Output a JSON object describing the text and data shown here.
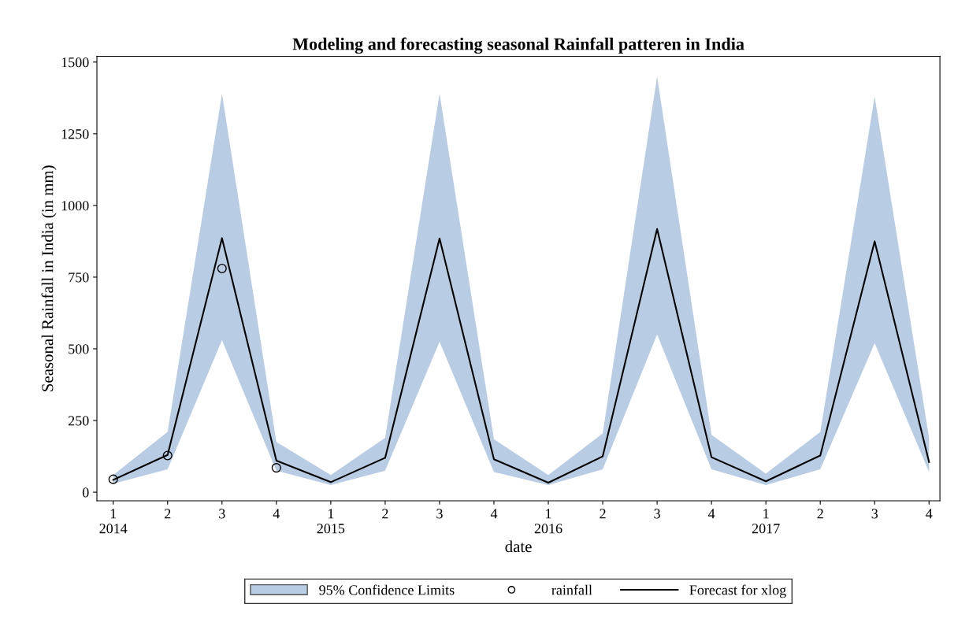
{
  "chart_data": {
    "type": "line",
    "title": "Modeling and forecasting seasonal Rainfall patteren in India",
    "xlabel": "date",
    "ylabel": "Seasonal Rainfall in India (in mm)",
    "categories": [
      "1\n2014",
      "2",
      "3",
      "4",
      "1\n2015",
      "2",
      "3",
      "4",
      "1\n2016",
      "2",
      "3",
      "4",
      "1\n2017",
      "2",
      "3",
      "4"
    ],
    "annotations": [
      "95% Confidence Limits"
    ],
    "ylim": [
      -30,
      1520
    ],
    "yticks": [
      0,
      250,
      500,
      750,
      1000,
      1250,
      1500
    ],
    "grid": false,
    "legend": "bottom",
    "series": [
      {
        "name": "rainfall",
        "type": "scatter",
        "marker": "circle",
        "color": "#000000",
        "values": [
          45,
          128,
          780,
          85,
          null,
          null,
          null,
          null,
          null,
          null,
          null,
          null,
          null,
          null,
          null,
          null
        ]
      },
      {
        "name": "Forecast for xlog",
        "marker": "none",
        "line_style": "solid",
        "color": "#000000",
        "values": [
          43,
          130,
          886,
          110,
          35,
          120,
          885,
          115,
          33,
          125,
          918,
          122,
          38,
          128,
          875,
          105
        ],
        "lower": [
          30,
          80,
          530,
          75,
          25,
          75,
          525,
          70,
          25,
          80,
          550,
          80,
          25,
          80,
          520,
          70
        ],
        "upper": [
          60,
          210,
          1390,
          175,
          60,
          190,
          1390,
          185,
          60,
          205,
          1450,
          200,
          65,
          210,
          1380,
          190
        ]
      }
    ]
  }
}
